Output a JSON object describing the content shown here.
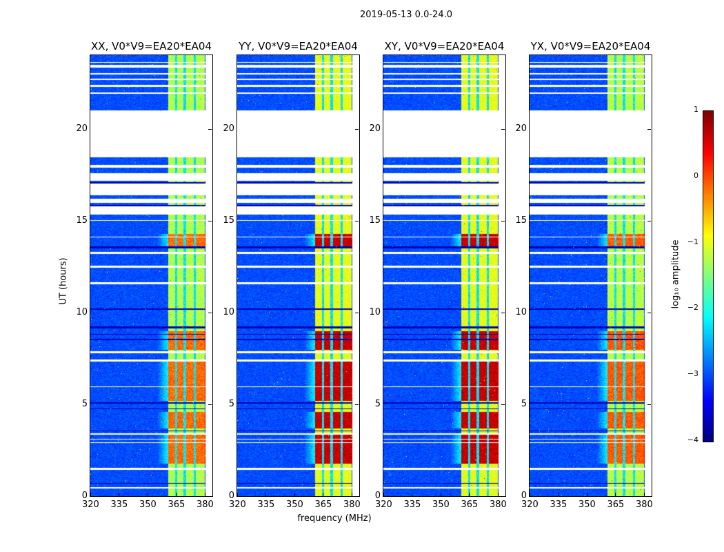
{
  "figure": {
    "suptitle": "2019-05-13 0.0-24.0",
    "xlabel": "frequency (MHz)",
    "ylabel": "UT (hours)",
    "colorbar_label": "log₁₀ amplitude"
  },
  "chart_data": {
    "type": "heatmap",
    "panels": [
      {
        "title": "XX, V0*V9=EA20*EA04",
        "level": 0.0
      },
      {
        "title": "YY, V0*V9=EA20*EA04",
        "level": 0.45
      },
      {
        "title": "XY, V0*V9=EA20*EA04",
        "level": 0.45
      },
      {
        "title": "YX, V0*V9=EA20*EA04",
        "level": 0.05
      }
    ],
    "xlim": [
      320,
      384
    ],
    "ylim": [
      0,
      24
    ],
    "xticks": [
      "320",
      "335",
      "350",
      "365",
      "380"
    ],
    "xtick_values": [
      320,
      335,
      350,
      365,
      380
    ],
    "yticks": [
      "0",
      "5",
      "10",
      "15",
      "20"
    ],
    "ytick_values": [
      0,
      5,
      10,
      15,
      20
    ],
    "colormap": "jet",
    "clim": [
      -4,
      1
    ],
    "colorbar_ticks": [
      "−4",
      "−3",
      "−2",
      "−1",
      "0",
      "1"
    ],
    "colorbar_tick_values": [
      -4,
      -3,
      -2,
      -1,
      0,
      1
    ],
    "band_mhz": [
      360.5,
      380
    ],
    "band_gaps_mhz": [
      364.8,
      369.3,
      374.5
    ],
    "flagged_hours": [
      [
        18.45,
        21.0
      ],
      [
        21.9,
        22.0
      ],
      [
        22.3,
        22.4
      ],
      [
        22.65,
        22.75
      ],
      [
        22.95,
        23.05
      ],
      [
        23.35,
        23.5
      ],
      [
        23.6,
        23.65
      ],
      [
        17.9,
        18.05
      ],
      [
        17.2,
        17.6
      ],
      [
        16.4,
        17.05
      ],
      [
        16.0,
        16.2
      ],
      [
        15.35,
        15.8
      ],
      [
        15.0,
        15.05
      ],
      [
        14.1,
        14.15
      ],
      [
        13.2,
        13.3
      ],
      [
        12.45,
        12.55
      ],
      [
        11.55,
        11.65
      ],
      [
        7.8,
        7.9
      ],
      [
        7.35,
        7.45
      ],
      [
        5.95,
        6.0
      ],
      [
        3.35,
        3.42
      ],
      [
        3.1,
        3.15
      ],
      [
        2.9,
        2.95
      ],
      [
        1.45,
        1.55
      ],
      [
        0.45,
        0.52
      ]
    ],
    "dark_hours": [
      [
        17.05,
        17.1
      ],
      [
        15.8,
        15.85
      ],
      [
        13.5,
        13.6
      ],
      [
        10.15,
        10.25
      ],
      [
        9.15,
        9.25
      ],
      [
        8.5,
        8.6
      ],
      [
        8.8,
        8.85
      ],
      [
        5.05,
        5.12
      ],
      [
        4.75,
        4.8
      ],
      [
        3.55,
        3.6
      ],
      [
        0.7,
        0.75
      ]
    ],
    "hot_hours": [
      [
        5.2,
        7.4
      ],
      [
        1.8,
        3.4
      ],
      [
        3.7,
        4.6
      ],
      [
        13.6,
        14.3
      ],
      [
        8.0,
        9.0
      ]
    ]
  }
}
